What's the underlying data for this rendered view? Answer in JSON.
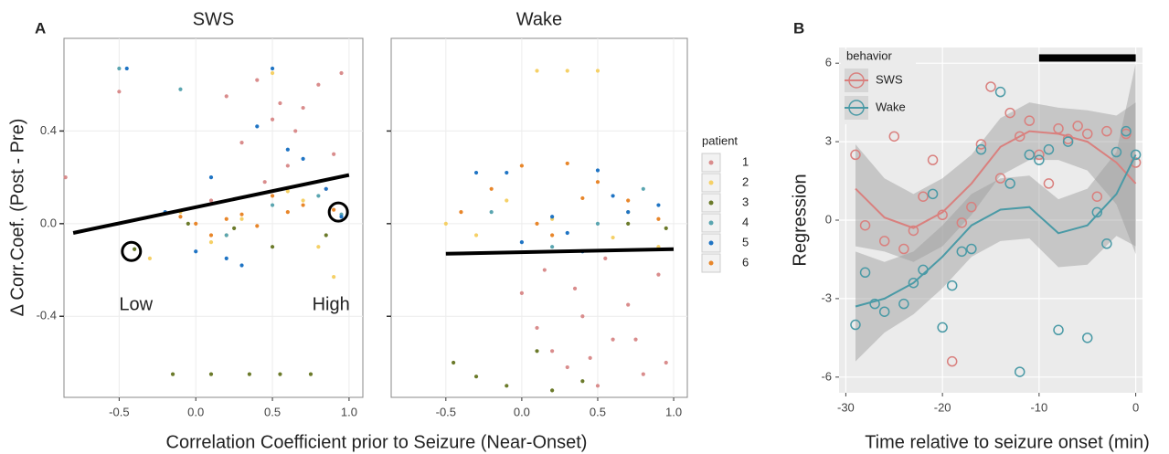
{
  "chart_data": [
    {
      "type": "scatter",
      "panel_label": "A",
      "x_label": "Correlation Coefficient prior to Seizure (Near-Onset)",
      "y_label": "Δ Corr.Coef. (Post - Pre)",
      "xlim": [
        -0.86,
        1.09
      ],
      "ylim": [
        -0.75,
        0.8
      ],
      "xticks": [
        -0.5,
        {
          "value": 0,
          "label": "0.0"
        },
        0.5,
        {
          "value": 1,
          "label": "1.0"
        }
      ],
      "yticks": [
        -0.4,
        {
          "value": 0,
          "label": "0.0"
        },
        0.4
      ],
      "grid": true,
      "legend_title": "patient",
      "legend": [
        {
          "name": "1",
          "color": "#d98c8c"
        },
        {
          "name": "2",
          "color": "#f5d066"
        },
        {
          "name": "3",
          "color": "#6b7a2a"
        },
        {
          "name": "4",
          "color": "#5aa5b0"
        },
        {
          "name": "5",
          "color": "#1f74c4"
        },
        {
          "name": "6",
          "color": "#e8862a"
        }
      ],
      "facets": [
        {
          "title": "SWS",
          "series": [
            {
              "x": [
                0.2,
                0.3,
                0.4,
                0.5,
                0.6,
                0.7,
                0.8,
                0.9,
                0.95,
                0.45,
                0.65,
                0.85,
                0.1,
                0.55,
                -0.85,
                -0.5
              ],
              "values": [
                0.55,
                0.35,
                0.62,
                0.45,
                0.25,
                0.5,
                0.6,
                0.3,
                0.65,
                0.18,
                0.4,
                0.15,
                0.1,
                0.52,
                0.2,
                0.57
              ]
            },
            {
              "x": [
                -0.3,
                -0.1,
                0.1,
                0.3,
                0.5,
                0.7,
                0.9,
                0.2,
                0.6,
                0.8
              ],
              "values": [
                -0.15,
                0.05,
                -0.08,
                0.02,
                0.65,
                0.1,
                -0.23,
                -0.05,
                0.14,
                -0.1
              ]
            },
            {
              "x": [
                -0.4,
                -0.15,
                0.1,
                0.35,
                0.55,
                0.75,
                0.85,
                0.25,
                -0.05,
                0.5
              ],
              "values": [
                -0.11,
                -0.65,
                -0.65,
                -0.65,
                -0.65,
                -0.65,
                -0.05,
                -0.02,
                0.0,
                -0.1
              ]
            },
            {
              "x": [
                -0.5,
                -0.1,
                0.2,
                0.5,
                0.8,
                0.95
              ],
              "values": [
                0.67,
                0.58,
                -0.05,
                0.08,
                0.12,
                0.04
              ]
            },
            {
              "x": [
                -0.45,
                -0.2,
                0.0,
                0.2,
                0.4,
                0.5,
                0.7,
                0.85,
                0.95,
                0.1,
                0.3,
                0.6
              ],
              "values": [
                0.67,
                0.05,
                -0.12,
                -0.15,
                0.42,
                0.67,
                0.28,
                0.15,
                0.03,
                0.2,
                -0.18,
                0.32
              ]
            },
            {
              "x": [
                -0.1,
                0.0,
                0.1,
                0.2,
                0.3,
                0.4,
                0.6,
                0.7,
                0.9,
                0.5
              ],
              "values": [
                0.03,
                0.0,
                -0.05,
                0.02,
                0.04,
                -0.01,
                0.05,
                0.08,
                0.06,
                0.12
              ]
            }
          ],
          "fit": {
            "x": [
              -0.8,
              1.0
            ],
            "values": [
              -0.04,
              0.21
            ]
          },
          "annotations": [
            {
              "text": "Low",
              "x": -0.42,
              "y": -0.12
            },
            {
              "text": "High",
              "x": 0.93,
              "y": 0.05
            }
          ]
        },
        {
          "title": "Wake",
          "series": [
            {
              "x": [
                0.0,
                0.1,
                0.2,
                0.3,
                0.4,
                0.5,
                0.6,
                0.7,
                0.8,
                0.9,
                0.95,
                0.35,
                0.55,
                0.75,
                0.15,
                0.45
              ],
              "values": [
                -0.3,
                -0.45,
                -0.55,
                -0.62,
                -0.4,
                -0.7,
                -0.5,
                -0.35,
                -0.65,
                -0.22,
                -0.6,
                -0.28,
                -0.15,
                -0.5,
                -0.2,
                -0.58
              ]
            },
            {
              "x": [
                -0.5,
                -0.3,
                -0.1,
                0.1,
                0.3,
                0.5,
                0.7,
                0.9,
                0.2,
                0.6
              ],
              "values": [
                0.0,
                -0.05,
                0.1,
                0.66,
                0.66,
                0.66,
                0.05,
                -0.1,
                0.02,
                -0.06
              ]
            },
            {
              "x": [
                -0.45,
                -0.3,
                -0.1,
                0.1,
                0.2,
                0.4,
                0.7,
                0.95
              ],
              "values": [
                -0.6,
                -0.66,
                -0.7,
                -0.55,
                -0.72,
                -0.68,
                0.0,
                -0.02
              ]
            },
            {
              "x": [
                -0.2,
                0.2,
                0.5,
                0.8
              ],
              "values": [
                0.05,
                -0.1,
                0.0,
                0.15
              ]
            },
            {
              "x": [
                -0.3,
                -0.1,
                0.0,
                0.2,
                0.4,
                0.5,
                0.7,
                0.9,
                0.3,
                0.6
              ],
              "values": [
                0.22,
                0.22,
                -0.08,
                0.03,
                -0.12,
                0.23,
                0.05,
                0.08,
                -0.04,
                0.12
              ]
            },
            {
              "x": [
                -0.4,
                -0.2,
                0.0,
                0.1,
                0.3,
                0.5,
                0.7,
                0.9,
                0.2,
                0.4
              ],
              "values": [
                0.05,
                0.15,
                0.25,
                0.0,
                0.26,
                0.18,
                0.1,
                0.02,
                -0.05,
                0.11
              ]
            }
          ],
          "fit": {
            "x": [
              -0.5,
              1.0
            ],
            "values": [
              -0.13,
              -0.11
            ]
          },
          "annotations": []
        }
      ]
    },
    {
      "type": "scatter",
      "panel_label": "B",
      "x_label": "Time relative to seizure onset (min)",
      "y_label": "Regression",
      "xlim": [
        -30.7,
        0.7
      ],
      "ylim": [
        -6.6,
        6.6
      ],
      "xticks": [
        -30,
        -20,
        -10,
        0
      ],
      "yticks": [
        -6,
        -3,
        0,
        3,
        6
      ],
      "grid": true,
      "legend_title": "behavior",
      "significance_bar": {
        "x": [
          -10,
          0
        ],
        "y": 6.2
      },
      "series": [
        {
          "name": "SWS",
          "color": "#d9807e",
          "x": [
            -29,
            -28,
            -26,
            -25,
            -24,
            -23,
            -22,
            -21,
            -20,
            -18,
            -17,
            -16,
            -15,
            -14,
            -13,
            -12,
            -11,
            -10,
            -9,
            -8,
            -7,
            -6,
            -5,
            -4,
            -3,
            -1,
            0,
            -19
          ],
          "values": [
            2.5,
            -0.2,
            -0.8,
            3.2,
            -1.1,
            -0.4,
            0.9,
            2.3,
            0.2,
            -0.1,
            0.5,
            2.9,
            5.1,
            1.6,
            4.1,
            3.2,
            3.8,
            2.5,
            1.4,
            3.5,
            3.1,
            3.6,
            3.3,
            0.9,
            3.4,
            3.3,
            2.2,
            -5.4
          ],
          "fit_x": [
            -29,
            -26,
            -23,
            -20,
            -17,
            -14,
            -11,
            -8,
            -5,
            -2,
            0
          ],
          "fit_values": [
            1.2,
            0.1,
            -0.3,
            0.3,
            1.4,
            2.8,
            3.4,
            3.3,
            3.0,
            2.2,
            1.4
          ],
          "band_upper": [
            2.9,
            1.6,
            1.0,
            1.6,
            2.5,
            3.9,
            4.5,
            4.3,
            4.2,
            4.0,
            4.5
          ],
          "band_lower": [
            -1.0,
            -1.2,
            -1.6,
            -1.0,
            0.2,
            1.7,
            2.3,
            2.3,
            1.9,
            0.6,
            -1.3
          ]
        },
        {
          "name": "Wake",
          "color": "#4a9aa6",
          "x": [
            -29,
            -28,
            -27,
            -26,
            -24,
            -23,
            -22,
            -21,
            -20,
            -19,
            -18,
            -17,
            -16,
            -14,
            -12,
            -11,
            -10,
            -9,
            -8,
            -7,
            -5,
            -4,
            -3,
            -2,
            -1,
            0,
            -13
          ],
          "values": [
            -4.0,
            -2.0,
            -3.2,
            -3.5,
            -3.2,
            -2.4,
            -1.9,
            1.0,
            -4.1,
            -2.5,
            -1.2,
            -1.1,
            2.7,
            4.9,
            -5.8,
            2.5,
            2.3,
            2.7,
            -4.2,
            3.0,
            -4.5,
            0.3,
            -0.9,
            2.6,
            3.4,
            2.5,
            1.4
          ],
          "fit_x": [
            -29,
            -26,
            -23,
            -20,
            -17,
            -14,
            -11,
            -8,
            -5,
            -2,
            0
          ],
          "fit_values": [
            -3.3,
            -3.0,
            -2.4,
            -1.4,
            -0.2,
            0.4,
            0.5,
            -0.5,
            -0.2,
            1.0,
            2.5
          ],
          "band_upper": [
            -1.2,
            -1.6,
            -1.2,
            -0.2,
            1.0,
            1.6,
            1.7,
            0.8,
            1.2,
            2.6,
            6.0
          ],
          "band_lower": [
            -5.4,
            -4.3,
            -3.6,
            -2.6,
            -1.4,
            -0.8,
            -0.7,
            -1.8,
            -1.7,
            -0.6,
            -1.0
          ]
        }
      ]
    }
  ]
}
